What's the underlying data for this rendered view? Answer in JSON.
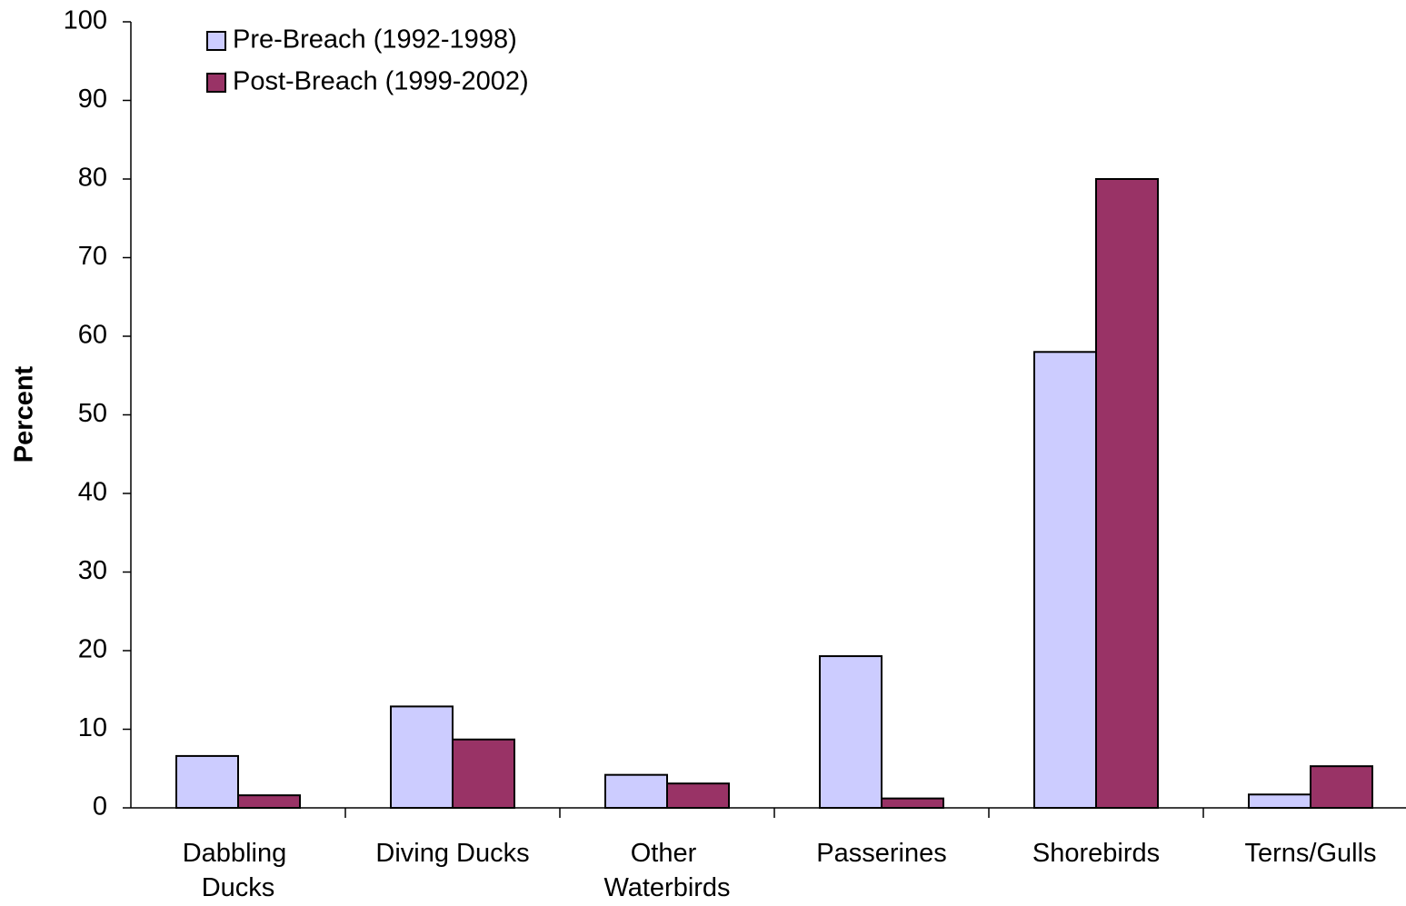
{
  "chart_data": {
    "type": "bar",
    "y_label": "Percent",
    "categories": [
      "Dabbling Ducks",
      "Diving Ducks",
      "Other Waterbirds",
      "Passerines",
      "Shorebirds",
      "Terns/Gulls"
    ],
    "series": [
      {
        "name": "Pre-Breach (1992-1998)",
        "color": "#ccccff",
        "values": [
          6.6,
          12.9,
          4.2,
          19.3,
          58,
          1.7
        ]
      },
      {
        "name": "Post-Breach (1999-2002)",
        "color": "#993366",
        "values": [
          1.6,
          8.7,
          3.1,
          1.2,
          80,
          5.3
        ]
      }
    ],
    "ylim": [
      0,
      100
    ],
    "yticks": [
      0,
      10,
      20,
      30,
      40,
      50,
      60,
      70,
      80,
      90,
      100
    ],
    "grid": false,
    "legend": "top-left"
  }
}
